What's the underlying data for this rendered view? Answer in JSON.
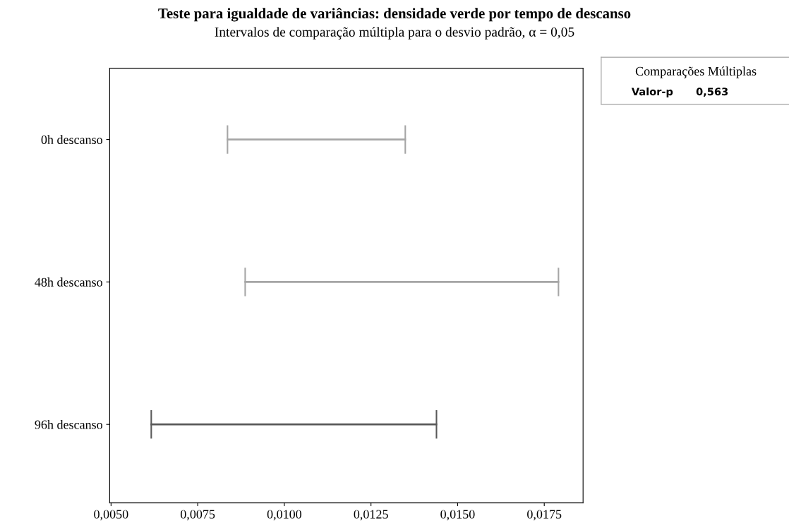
{
  "chart_data": {
    "type": "bar",
    "orientation": "horizontal",
    "title": "Teste para igualdade de variâncias: densidade verde por tempo de descanso",
    "subtitle": "Intervalos de comparação múltipla para o desvio padrão, α = 0,05",
    "categories": [
      "0h descanso",
      "48h descanso",
      "96h descanso"
    ],
    "base": [
      0.00836,
      0.00887,
      0.00616
    ],
    "values": [
      0.00513,
      0.00904,
      0.00823
    ],
    "colors": [
      "#a6a6a6",
      "#a6a6a6",
      "#595959"
    ],
    "xlim": [
      0.00496,
      0.01862
    ],
    "xticks": [
      {
        "value": 0.005,
        "label": "0,0050"
      },
      {
        "value": 0.0075,
        "label": "0,0075"
      },
      {
        "value": 0.01,
        "label": "0,0100"
      },
      {
        "value": 0.0125,
        "label": "0,0125"
      },
      {
        "value": 0.015,
        "label": "0,0150"
      },
      {
        "value": 0.0175,
        "label": "0,0175"
      }
    ],
    "grid": false,
    "legend": false,
    "annotations": [
      "Comparações Múltiplas",
      "Valor-p",
      "0,563"
    ]
  }
}
